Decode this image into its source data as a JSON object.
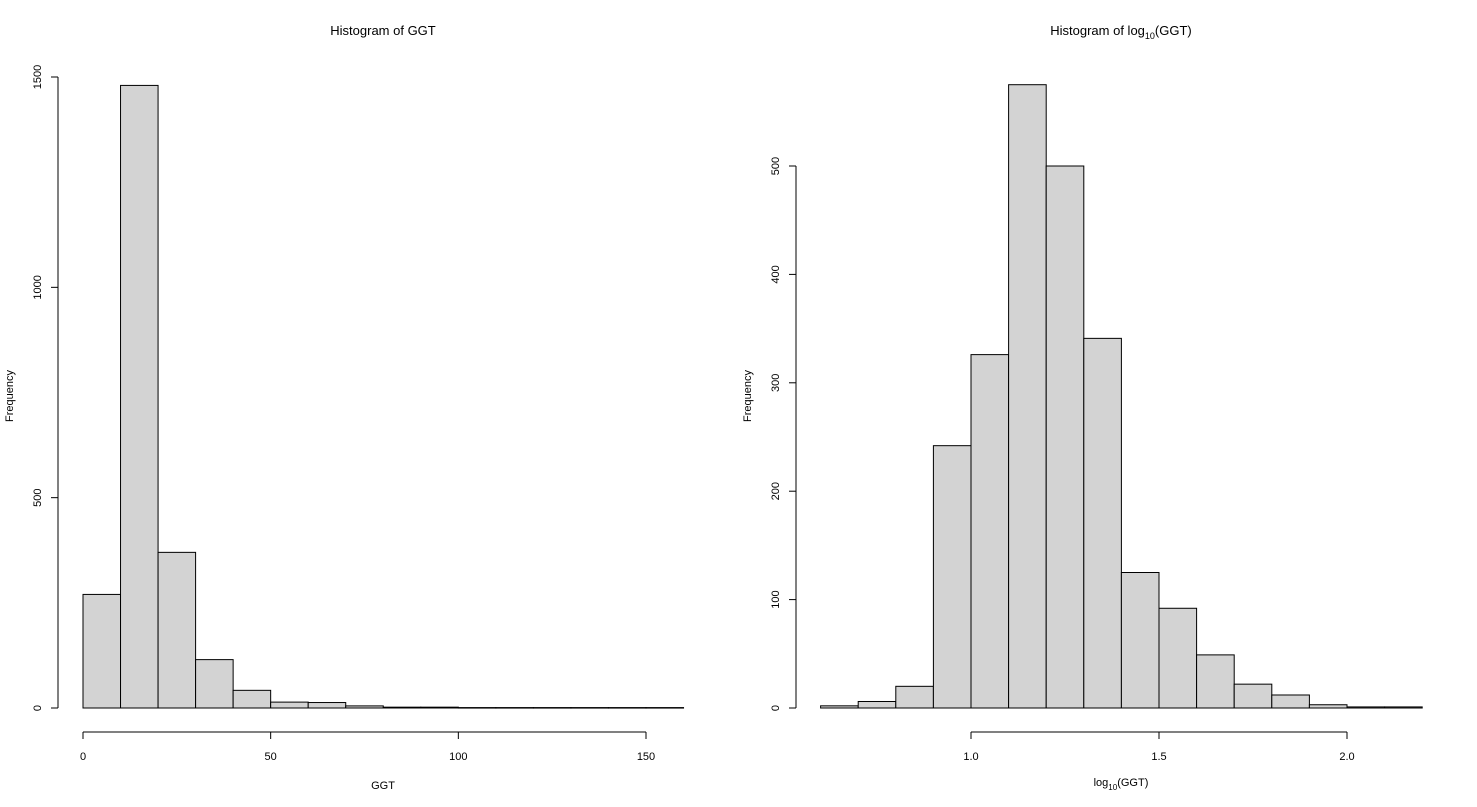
{
  "chart_data": [
    {
      "type": "bar",
      "title": "Histogram of GGT",
      "xlabel": "GGT",
      "ylabel": "Frequency",
      "bins": [
        [
          0,
          10
        ],
        [
          10,
          20
        ],
        [
          20,
          30
        ],
        [
          30,
          40
        ],
        [
          40,
          50
        ],
        [
          50,
          60
        ],
        [
          60,
          70
        ],
        [
          70,
          80
        ],
        [
          80,
          90
        ],
        [
          90,
          100
        ],
        [
          100,
          110
        ],
        [
          110,
          120
        ],
        [
          120,
          130
        ],
        [
          130,
          140
        ],
        [
          140,
          150
        ],
        [
          150,
          160
        ]
      ],
      "values": [
        270,
        1480,
        370,
        115,
        42,
        14,
        13,
        5,
        2,
        2,
        1,
        1,
        1,
        1,
        1,
        1
      ],
      "xlim": [
        0,
        160
      ],
      "ylim": [
        0,
        1500
      ],
      "xticks": [
        0,
        50,
        100,
        150
      ],
      "xtick_labels": [
        "0",
        "50",
        "100",
        "150"
      ],
      "yticks": [
        0,
        500,
        1000,
        1500
      ],
      "ytick_labels": [
        "0",
        "500",
        "1000",
        "1500"
      ],
      "grid": false
    },
    {
      "type": "bar",
      "title": "Histogram of log",
      "title_sub": "10",
      "title_tail": "(GGT)",
      "xlabel": "log",
      "xlabel_sub": "10",
      "xlabel_tail": "(GGT)",
      "ylabel": "Frequency",
      "bins": [
        [
          0.6,
          0.7
        ],
        [
          0.7,
          0.8
        ],
        [
          0.8,
          0.9
        ],
        [
          0.9,
          1.0
        ],
        [
          1.0,
          1.1
        ],
        [
          1.1,
          1.2
        ],
        [
          1.2,
          1.3
        ],
        [
          1.3,
          1.4
        ],
        [
          1.4,
          1.5
        ],
        [
          1.5,
          1.6
        ],
        [
          1.6,
          1.7
        ],
        [
          1.7,
          1.8
        ],
        [
          1.8,
          1.9
        ],
        [
          1.9,
          2.0
        ],
        [
          2.0,
          2.1
        ],
        [
          2.1,
          2.2
        ]
      ],
      "values": [
        2,
        6,
        20,
        242,
        326,
        575,
        500,
        341,
        125,
        92,
        49,
        22,
        12,
        3,
        1,
        1
      ],
      "xlim": [
        1.0,
        2.0
      ],
      "ylim": [
        0,
        500
      ],
      "xticks": [
        1.0,
        1.5,
        2.0
      ],
      "xtick_labels": [
        "1.0",
        "1.5",
        "2.0"
      ],
      "yticks": [
        0,
        100,
        200,
        300,
        400,
        500
      ],
      "ytick_labels": [
        "0",
        "100",
        "200",
        "300",
        "400",
        "500"
      ],
      "grid": false
    }
  ]
}
